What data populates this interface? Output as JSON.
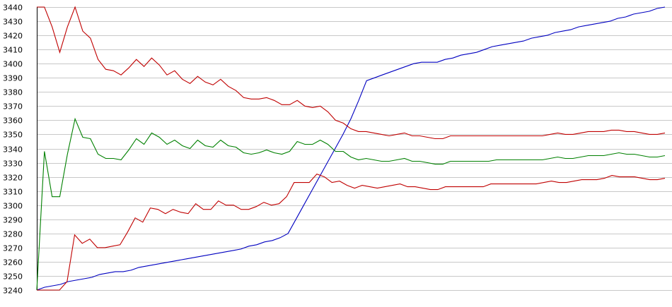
{
  "chart_data": {
    "type": "line",
    "title": "",
    "xlabel": "",
    "ylabel": "",
    "ylim": [
      3240,
      3440
    ],
    "y_ticks": [
      3440,
      3430,
      3420,
      3410,
      3400,
      3390,
      3380,
      3370,
      3360,
      3350,
      3340,
      3330,
      3320,
      3310,
      3300,
      3290,
      3280,
      3270,
      3260,
      3250,
      3240
    ],
    "grid": true,
    "legend": "none",
    "series": [
      {
        "color": "#0000c0",
        "values": [
          3240,
          3242,
          3243,
          3244,
          3246,
          3247,
          3248,
          3249,
          3251,
          3252,
          3253,
          3253,
          3254,
          3256,
          3257,
          3258,
          3259,
          3260,
          3261,
          3262,
          3263,
          3264,
          3265,
          3266,
          3267,
          3268,
          3269,
          3271,
          3272,
          3274,
          3275,
          3277,
          3280,
          3290,
          3300,
          3310,
          3320,
          3330,
          3340,
          3350,
          3361,
          3374,
          3388,
          3390,
          3392,
          3394,
          3396,
          3398,
          3400,
          3401,
          3401,
          3401,
          3403,
          3404,
          3406,
          3407,
          3408,
          3410,
          3412,
          3413,
          3414,
          3415,
          3416,
          3418,
          3419,
          3420,
          3422,
          3423,
          3424,
          3426,
          3427,
          3428,
          3429,
          3430,
          3432,
          3433,
          3435,
          3436,
          3437,
          3439,
          3440
        ]
      },
      {
        "color": "#c00000",
        "values": [
          3440,
          3440,
          3426,
          3408,
          3426,
          3440,
          3423,
          3418,
          3403,
          3396,
          3395,
          3392,
          3397,
          3403,
          3398,
          3404,
          3399,
          3392,
          3395,
          3389,
          3386,
          3391,
          3387,
          3385,
          3389,
          3384,
          3381,
          3376,
          3375,
          3375,
          3376,
          3374,
          3371,
          3371,
          3374,
          3370,
          3369,
          3370,
          3366,
          3360,
          3358,
          3354,
          3352,
          3352,
          3351,
          3350,
          3349,
          3350,
          3351,
          3349,
          3349,
          3348,
          3347,
          3347,
          3349,
          3349,
          3349,
          3349,
          3349,
          3349,
          3349,
          3349,
          3349,
          3349,
          3349,
          3349,
          3349,
          3350,
          3351,
          3350,
          3350,
          3351,
          3352,
          3352,
          3352,
          3353,
          3353,
          3352,
          3352,
          3351,
          3350,
          3350,
          3351
        ]
      },
      {
        "color": "#008000",
        "values": [
          3240,
          3338,
          3306,
          3306,
          3336,
          3361,
          3348,
          3347,
          3336,
          3333,
          3333,
          3332,
          3339,
          3347,
          3343,
          3351,
          3348,
          3343,
          3346,
          3342,
          3340,
          3346,
          3342,
          3341,
          3346,
          3342,
          3341,
          3337,
          3336,
          3337,
          3339,
          3337,
          3336,
          3338,
          3345,
          3343,
          3343,
          3346,
          3343,
          3338,
          3338,
          3334,
          3332,
          3333,
          3332,
          3331,
          3331,
          3332,
          3333,
          3331,
          3331,
          3330,
          3329,
          3329,
          3331,
          3331,
          3331,
          3331,
          3331,
          3331,
          3332,
          3332,
          3332,
          3332,
          3332,
          3332,
          3332,
          3333,
          3334,
          3333,
          3333,
          3334,
          3335,
          3335,
          3335,
          3336,
          3337,
          3336,
          3336,
          3335,
          3334,
          3334,
          3335
        ]
      },
      {
        "color": "#c00000",
        "values": [
          3240,
          3240,
          3240,
          3240,
          3246,
          3279,
          3273,
          3276,
          3270,
          3270,
          3271,
          3272,
          3281,
          3291,
          3288,
          3298,
          3297,
          3294,
          3297,
          3295,
          3294,
          3301,
          3297,
          3297,
          3303,
          3300,
          3300,
          3297,
          3297,
          3299,
          3302,
          3300,
          3301,
          3306,
          3316,
          3316,
          3316,
          3322,
          3320,
          3316,
          3317,
          3314,
          3312,
          3314,
          3313,
          3312,
          3313,
          3314,
          3315,
          3313,
          3313,
          3312,
          3311,
          3311,
          3313,
          3313,
          3313,
          3313,
          3313,
          3313,
          3315,
          3315,
          3315,
          3315,
          3315,
          3315,
          3315,
          3316,
          3317,
          3316,
          3316,
          3317,
          3318,
          3318,
          3318,
          3319,
          3321,
          3320,
          3320,
          3320,
          3319,
          3318,
          3318,
          3319
        ]
      }
    ]
  }
}
